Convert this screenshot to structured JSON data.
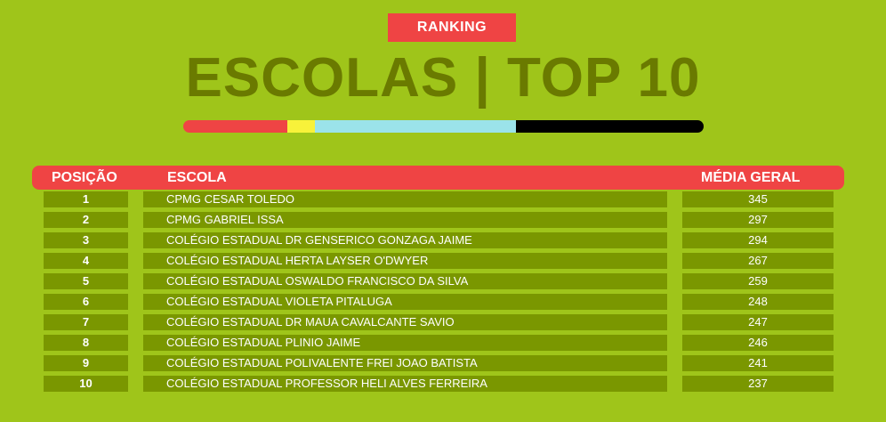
{
  "badge": "RANKING",
  "title": "ESCOLAS | TOP 10",
  "colors": {
    "background": "#9fc51a",
    "header": "#ef4444",
    "row": "#7a9700",
    "title": "#6a7a00",
    "bar_segments": [
      "#ef4444",
      "#f8f23a",
      "#9be3ea",
      "#000000"
    ]
  },
  "table": {
    "headers": {
      "position": "POSIÇÃO",
      "school": "ESCOLA",
      "average": "MÉDIA GERAL"
    },
    "rows": [
      {
        "position": "1",
        "school": "CPMG CESAR TOLEDO",
        "average": "345"
      },
      {
        "position": "2",
        "school": "CPMG GABRIEL ISSA",
        "average": "297"
      },
      {
        "position": "3",
        "school": "COLÉGIO ESTADUAL DR GENSERICO GONZAGA JAIME",
        "average": "294"
      },
      {
        "position": "4",
        "school": "COLÉGIO ESTADUAL HERTA LAYSER O'DWYER",
        "average": "267"
      },
      {
        "position": "5",
        "school": "COLÉGIO ESTADUAL OSWALDO FRANCISCO DA SILVA",
        "average": "259"
      },
      {
        "position": "6",
        "school": "COLÉGIO ESTADUAL VIOLETA PITALUGA",
        "average": "248"
      },
      {
        "position": "7",
        "school": "COLÉGIO ESTADUAL DR MAUA CAVALCANTE SAVIO",
        "average": "247"
      },
      {
        "position": "8",
        "school": "COLÉGIO ESTADUAL PLINIO JAIME",
        "average": "246"
      },
      {
        "position": "9",
        "school": "COLÉGIO ESTADUAL POLIVALENTE FREI JOAO BATISTA",
        "average": "241"
      },
      {
        "position": "10",
        "school": "COLÉGIO ESTADUAL PROFESSOR HELI ALVES FERREIRA",
        "average": "237"
      }
    ]
  }
}
